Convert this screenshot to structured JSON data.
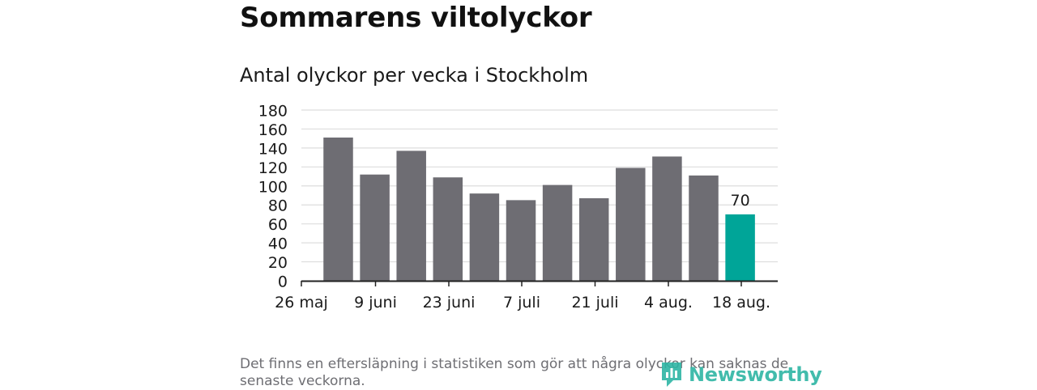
{
  "header": {
    "title": "Sommarens viltolyckor",
    "subtitle": "Antal olyckor per vecka i Stockholm"
  },
  "footer": {
    "note": "Det finns en eftersläpning i statistiken som gör att några olyckor kan saknas de senaste veckorna.",
    "brand": "Newsworthy",
    "brand_icon": "newsworthy-logo-icon"
  },
  "colors": {
    "bar": "#6e6d73",
    "highlight": "#00a598",
    "grid": "#dddddd",
    "axis": "#222222",
    "brand": "#2eb5a4"
  },
  "chart_data": {
    "type": "bar",
    "title": "Antal olyckor per vecka i Stockholm",
    "xlabel": "",
    "ylabel": "",
    "ylim": [
      0,
      180
    ],
    "yticks": [
      0,
      20,
      40,
      60,
      80,
      100,
      120,
      140,
      160,
      180
    ],
    "grid": true,
    "x_tick_labels": [
      "26 maj",
      "9 juni",
      "23 juni",
      "7 juli",
      "21 juli",
      "4 aug.",
      "18 aug."
    ],
    "weeks": [
      "2019-05-27",
      "2019-06-03",
      "2019-06-10",
      "2019-06-17",
      "2019-06-24",
      "2019-07-01",
      "2019-07-08",
      "2019-07-15",
      "2019-07-22",
      "2019-07-29",
      "2019-08-05",
      "2019-08-12"
    ],
    "values": [
      151,
      112,
      137,
      109,
      92,
      85,
      101,
      87,
      119,
      131,
      111,
      70
    ],
    "highlight_index": 11,
    "data_labels": [
      {
        "index": 11,
        "text": "70"
      }
    ]
  }
}
